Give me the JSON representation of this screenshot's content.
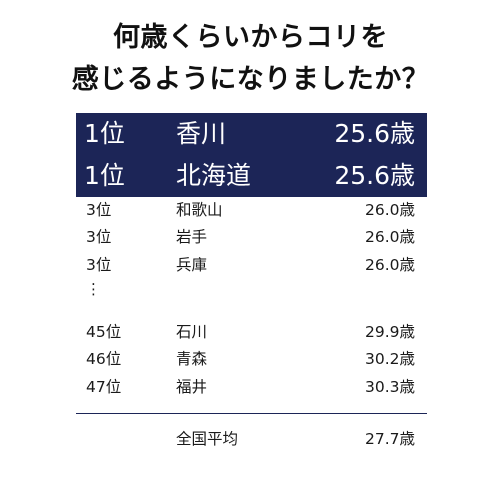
{
  "title": {
    "line1": "何歳くらいからコリを",
    "line2": "感じるようになりましたか？"
  },
  "highlight_rows": [
    {
      "rank": "1位",
      "prefecture": "香川",
      "age": "25.6歳"
    },
    {
      "rank": "1位",
      "prefecture": "北海道",
      "age": "25.6歳"
    }
  ],
  "rows": [
    {
      "rank": "3位",
      "prefecture": "和歌山",
      "age": "26.0歳"
    },
    {
      "rank": "3位",
      "prefecture": "岩手",
      "age": "26.0歳"
    },
    {
      "rank": "3位",
      "prefecture": "兵庫",
      "age": "26.0歳"
    },
    {
      "rank": "45位",
      "prefecture": "石川",
      "age": "29.9歳"
    },
    {
      "rank": "46位",
      "prefecture": "青森",
      "age": "30.2歳"
    },
    {
      "rank": "47位",
      "prefecture": "福井",
      "age": "30.3歳"
    }
  ],
  "ellipsis": "⋮",
  "average": {
    "label": "全国平均",
    "age": "27.7歳"
  },
  "colors": {
    "highlight_background": "#1c2557",
    "highlight_text": "#ffffff"
  }
}
